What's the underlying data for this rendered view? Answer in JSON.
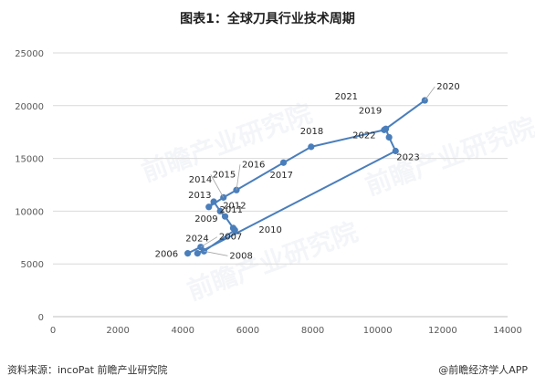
{
  "title": "图表1：全球刀具行业技术周期",
  "source": "资料来源：incoPat 前瞻产业研究院",
  "brand": "@前瞻经济学人APP",
  "watermark": "前瞻产业研究院",
  "colors": {
    "series": "#4a7ebb",
    "grid": "#d9d9d9",
    "axis": "#595959"
  },
  "chart_data": {
    "type": "scatter",
    "connected": true,
    "grid": true,
    "xlim": [
      0,
      14000
    ],
    "ylim": [
      0,
      25000
    ],
    "xticks": [
      0,
      2000,
      4000,
      6000,
      8000,
      10000,
      12000,
      14000
    ],
    "yticks": [
      0,
      5000,
      10000,
      15000,
      20000,
      25000
    ],
    "points": [
      {
        "label": "2006",
        "x": 4150,
        "y": 6000
      },
      {
        "label": "2007",
        "x": 4550,
        "y": 6600
      },
      {
        "label": "2008",
        "x": 4650,
        "y": 6200
      },
      {
        "label": "2009",
        "x": 5600,
        "y": 8200
      },
      {
        "label": "2010",
        "x": 5550,
        "y": 8400
      },
      {
        "label": "2011",
        "x": 5300,
        "y": 9500
      },
      {
        "label": "2012",
        "x": 5150,
        "y": 10000
      },
      {
        "label": "2013",
        "x": 4950,
        "y": 10900
      },
      {
        "label": "2014",
        "x": 4800,
        "y": 10400
      },
      {
        "label": "2015",
        "x": 5250,
        "y": 11300
      },
      {
        "label": "2016",
        "x": 5650,
        "y": 12000
      },
      {
        "label": "2017",
        "x": 7100,
        "y": 14600
      },
      {
        "label": "2018",
        "x": 7950,
        "y": 16100
      },
      {
        "label": "2019",
        "x": 10200,
        "y": 17700
      },
      {
        "label": "2020",
        "x": 11450,
        "y": 20500
      },
      {
        "label": "2021",
        "x": 10250,
        "y": 17800
      },
      {
        "label": "2022",
        "x": 10350,
        "y": 17000
      },
      {
        "label": "2023",
        "x": 10550,
        "y": 15700
      },
      {
        "label": "2024",
        "x": 4450,
        "y": 6000
      }
    ]
  }
}
